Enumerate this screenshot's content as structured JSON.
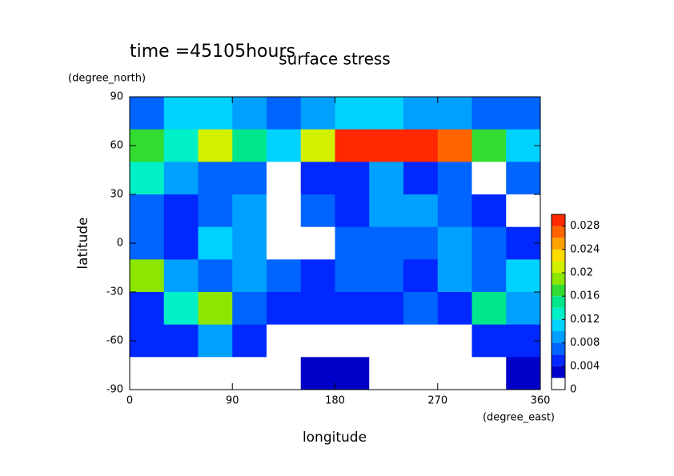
{
  "chart_data": {
    "type": "contour",
    "title": "surface stress",
    "subtitle": "time =45105hours",
    "x_label": "longitude",
    "y_label": "latitude",
    "x_unit": "(degree_east)",
    "y_unit": "(degree_north)",
    "x": [
      15,
      45,
      75,
      105,
      135,
      165,
      195,
      225,
      255,
      285,
      315,
      345
    ],
    "y": [
      80,
      60,
      40,
      20,
      0,
      -20,
      -40,
      -60,
      -80
    ],
    "z": [
      [
        0.006,
        0.01,
        0.01,
        0.008,
        0.006,
        0.008,
        0.01,
        0.01,
        0.008,
        0.008,
        0.006,
        0.006
      ],
      [
        0.016,
        0.012,
        0.02,
        0.014,
        0.01,
        0.02,
        0.028,
        0.03,
        0.03,
        0.026,
        0.016,
        0.01
      ],
      [
        0.012,
        0.008,
        0.006,
        0.006,
        0.001,
        0.004,
        0.004,
        0.008,
        0.004,
        0.006,
        0.001,
        0.006
      ],
      [
        0.006,
        0.004,
        0.006,
        0.008,
        0.001,
        0.006,
        0.004,
        0.008,
        0.008,
        0.006,
        0.004,
        0.001
      ],
      [
        0.006,
        0.004,
        0.01,
        0.008,
        0.001,
        0.001,
        0.006,
        0.006,
        0.006,
        0.008,
        0.006,
        0.004
      ],
      [
        0.018,
        0.008,
        0.006,
        0.008,
        0.006,
        0.004,
        0.006,
        0.006,
        0.004,
        0.008,
        0.006,
        0.01
      ],
      [
        0.004,
        0.012,
        0.018,
        0.006,
        0.004,
        0.004,
        0.004,
        0.004,
        0.006,
        0.004,
        0.014,
        0.008
      ],
      [
        0.004,
        0.004,
        0.008,
        0.004,
        0.001,
        0.001,
        0.001,
        0.001,
        0.001,
        0.001,
        0.004,
        0.004
      ],
      [
        0.001,
        0.001,
        0.001,
        0.001,
        0.001,
        0.002,
        0.003,
        0.001,
        0.001,
        0.001,
        0.001,
        0.002
      ]
    ],
    "xlim": [
      0,
      360
    ],
    "xticks": [
      0,
      90,
      180,
      270,
      360
    ],
    "ylim": [
      -90,
      90
    ],
    "yticks": [
      -90,
      -60,
      -30,
      0,
      30,
      60,
      90
    ],
    "colorbar": {
      "levels": [
        0,
        0.002,
        0.004,
        0.006,
        0.008,
        0.01,
        0.012,
        0.014,
        0.016,
        0.018,
        0.02,
        0.022,
        0.024,
        0.026,
        0.028,
        0.03
      ],
      "colors": [
        "#ffffff",
        "#0000c8",
        "#0028ff",
        "#0064ff",
        "#00a0ff",
        "#00d2ff",
        "#00f0c8",
        "#00e68c",
        "#32dc32",
        "#8ce600",
        "#d2f000",
        "#ffdc00",
        "#ffa000",
        "#ff6400",
        "#ff2800"
      ],
      "ticks": [
        0,
        0.004,
        0.008,
        0.012,
        0.016,
        0.02,
        0.024,
        0.028
      ]
    }
  }
}
